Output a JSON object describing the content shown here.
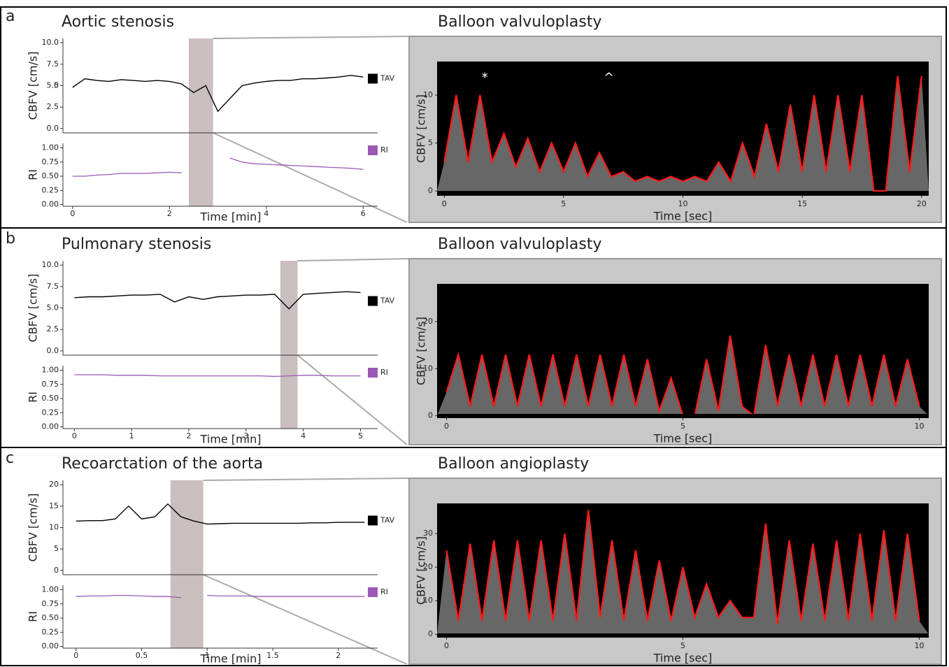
{
  "chart_data": [
    {
      "type": "line",
      "panel": "a",
      "title": "Aortic stenosis",
      "x": [
        0,
        0.25,
        0.5,
        0.75,
        1,
        1.25,
        1.5,
        1.75,
        2,
        2.25,
        2.5,
        2.75,
        3,
        3.25,
        3.5,
        3.75,
        4,
        4.25,
        4.5,
        4.75,
        5,
        5.25,
        5.5,
        5.75,
        6
      ],
      "xlim": [
        -0.2,
        6.3
      ],
      "xticks": [
        0,
        2,
        4,
        6
      ],
      "xlabel": "Time [min]",
      "ylabel": "CBFV [cm/s]",
      "ylim": [
        -0.5,
        10.5
      ],
      "yticks": [
        {
          "value": 0,
          "label": "0.0"
        },
        2.5,
        5,
        {
          "value": 5,
          "label": "5.0"
        },
        7.5,
        {
          "value": 10,
          "label": "10.0"
        }
      ],
      "y2label": "RI",
      "y2lim": [
        -0.03,
        1.08
      ],
      "y2ticks": [
        {
          "value": 0,
          "label": "0.00"
        },
        0.25,
        {
          "value": 0.5,
          "label": "0.50"
        },
        0.75,
        {
          "value": 1,
          "label": "1.00"
        }
      ],
      "highlight": [
        2.4,
        2.9
      ],
      "highlight_color": "#c9bfbe",
      "series": [
        {
          "name": "TAV",
          "color": "#000000",
          "values": [
            4.8,
            5.8,
            5.6,
            5.5,
            5.7,
            5.6,
            5.5,
            5.6,
            5.5,
            5.2,
            4.2,
            5.0,
            2.0,
            3.5,
            5.0,
            5.3,
            5.5,
            5.6,
            5.6,
            5.8,
            5.8,
            5.9,
            6.0,
            6.2,
            6.0
          ]
        },
        {
          "name": "RI",
          "color": "#9b59b6",
          "axis": "y2",
          "values": [
            0.5,
            0.5,
            0.52,
            0.53,
            0.55,
            0.55,
            0.55,
            0.56,
            0.57,
            0.56,
            null,
            null,
            null,
            0.82,
            0.75,
            0.72,
            0.71,
            0.7,
            0.69,
            0.68,
            0.67,
            0.66,
            0.65,
            0.64,
            0.62
          ]
        }
      ]
    },
    {
      "type": "line",
      "title": "Balloon valvuloplasty",
      "background": "#000000",
      "x": [
        0,
        0.5,
        1,
        1.5,
        2,
        2.5,
        3,
        3.5,
        4,
        4.5,
        5,
        5.5,
        6,
        6.5,
        7,
        7.5,
        8,
        8.5,
        9,
        9.5,
        10,
        10.5,
        11,
        11.5,
        12,
        12.5,
        13,
        13.5,
        14,
        14.5,
        15,
        15.5,
        16,
        16.5,
        17,
        17.5,
        18,
        18.5,
        19,
        19.5,
        20
      ],
      "xlim": [
        -0.3,
        20.3
      ],
      "xticks": [
        0,
        5,
        10,
        15,
        20
      ],
      "xlabel": "Time [sec]",
      "ylabel": "CBFV [cm/s]",
      "ylim": [
        -0.5,
        13.5
      ],
      "yticks": [
        0,
        5,
        10
      ],
      "annotations": [
        {
          "text": "*",
          "x": 1.7,
          "y": 11.8
        },
        {
          "text": "^",
          "x": 6.9,
          "y": 11.8
        }
      ],
      "series": [
        {
          "color": "#ff1a1a",
          "values": [
            3,
            10,
            3,
            10,
            3,
            6,
            2.5,
            5.5,
            2,
            5,
            2,
            5,
            1.5,
            4,
            1.5,
            2,
            1,
            1.5,
            1,
            1.5,
            1,
            1.5,
            1,
            3,
            1,
            5,
            1.5,
            7,
            2,
            9,
            2,
            10,
            2,
            10,
            2,
            10,
            0,
            0,
            12,
            2,
            12
          ]
        }
      ]
    },
    {
      "type": "line",
      "panel": "b",
      "title": "Pulmonary stenosis",
      "x": [
        0,
        0.25,
        0.5,
        0.75,
        1,
        1.25,
        1.5,
        1.75,
        2,
        2.25,
        2.5,
        2.75,
        3,
        3.25,
        3.5,
        3.75,
        4,
        4.25,
        4.5,
        4.75,
        5
      ],
      "xlim": [
        -0.2,
        5.3
      ],
      "xticks": [
        0,
        1,
        2,
        3,
        4,
        5
      ],
      "xlabel": "Time [min]",
      "ylabel": "CBFV [cm/s]",
      "ylim": [
        -0.5,
        10.5
      ],
      "yticks": [
        {
          "value": 0,
          "label": "0.0"
        },
        2.5,
        {
          "value": 5,
          "label": "5.0"
        },
        7.5,
        {
          "value": 10,
          "label": "10.0"
        }
      ],
      "y2label": "RI",
      "y2lim": [
        -0.03,
        1.08
      ],
      "y2ticks": [
        {
          "value": 0,
          "label": "0.00"
        },
        0.25,
        {
          "value": 0.5,
          "label": "0.50"
        },
        0.75,
        {
          "value": 1,
          "label": "1.00"
        }
      ],
      "highlight": [
        3.6,
        3.9
      ],
      "highlight_color": "#c9bfbe",
      "series": [
        {
          "name": "TAV",
          "color": "#000000",
          "values": [
            6.2,
            6.3,
            6.3,
            6.4,
            6.5,
            6.5,
            6.6,
            5.7,
            6.3,
            6.0,
            6.3,
            6.4,
            6.5,
            6.5,
            6.6,
            4.9,
            6.6,
            6.7,
            6.8,
            6.9,
            6.8
          ]
        },
        {
          "name": "RI",
          "color": "#9b59b6",
          "axis": "y2",
          "values": [
            0.92,
            0.92,
            0.92,
            0.91,
            0.91,
            0.91,
            0.9,
            0.9,
            0.9,
            0.9,
            0.9,
            0.9,
            0.9,
            0.9,
            0.89,
            0.9,
            0.91,
            0.91,
            0.9,
            0.9,
            0.9
          ]
        }
      ]
    },
    {
      "type": "line",
      "title": "Balloon valvuloplasty",
      "background": "#000000",
      "x": [
        0,
        0.25,
        0.5,
        0.75,
        1,
        1.25,
        1.5,
        1.75,
        2,
        2.25,
        2.5,
        2.75,
        3,
        3.25,
        3.5,
        3.75,
        4,
        4.25,
        4.5,
        4.75,
        5,
        5.25,
        5.5,
        5.75,
        6,
        6.25,
        6.5,
        6.75,
        7,
        7.25,
        7.5,
        7.75,
        8,
        8.25,
        8.5,
        8.75,
        9,
        9.25,
        9.5,
        9.75,
        10
      ],
      "xlim": [
        -0.2,
        10.2
      ],
      "xticks": [
        0,
        5,
        10
      ],
      "xlabel": "Time [sec]",
      "ylabel": "CBFV [cm/s]",
      "ylim": [
        -0.5,
        28
      ],
      "yticks": [
        0,
        10,
        20
      ],
      "series": [
        {
          "color": "#ff1a1a",
          "values": [
            5,
            13,
            2,
            13,
            2,
            13,
            2,
            13,
            2,
            13,
            2,
            13,
            2,
            13,
            2,
            13,
            2,
            12,
            1,
            8,
            0,
            0,
            12,
            1,
            17,
            2,
            0,
            15,
            2,
            13,
            2,
            13,
            2,
            13,
            2,
            13,
            2,
            13,
            2,
            12,
            2
          ]
        }
      ]
    },
    {
      "type": "line",
      "panel": "c",
      "title": "Recoarctation of the aorta",
      "x": [
        0,
        0.1,
        0.2,
        0.3,
        0.4,
        0.5,
        0.6,
        0.7,
        0.8,
        0.9,
        1,
        1.1,
        1.2,
        1.3,
        1.4,
        1.5,
        1.6,
        1.7,
        1.8,
        1.9,
        2,
        2.1,
        2.2
      ],
      "xlim": [
        -0.1,
        2.3
      ],
      "xticks": [
        0,
        0.5,
        1,
        1.5,
        2
      ],
      "xlabel": "Time [min]",
      "ylabel": "CBFV [cm/s]",
      "ylim": [
        -1,
        21
      ],
      "yticks": [
        0,
        5,
        10,
        15,
        20
      ],
      "y2label": "RI",
      "y2lim": [
        -0.03,
        1.08
      ],
      "y2ticks": [
        {
          "value": 0,
          "label": "0.00"
        },
        0.25,
        {
          "value": 0.5,
          "label": "0.50"
        },
        0.75,
        {
          "value": 1,
          "label": "1.00"
        }
      ],
      "highlight": [
        0.72,
        0.97
      ],
      "highlight_color": "#c9bfbe",
      "series": [
        {
          "name": "TAV",
          "color": "#000000",
          "values": [
            11.5,
            11.6,
            11.6,
            12,
            15,
            12,
            12.5,
            15.5,
            12.5,
            11.5,
            10.8,
            10.9,
            11,
            11,
            11,
            11,
            11,
            11,
            11.1,
            11.1,
            11.2,
            11.2,
            11.2
          ]
        },
        {
          "name": "RI",
          "color": "#9b59b6",
          "axis": "y2",
          "values": [
            0.88,
            0.89,
            0.89,
            0.9,
            0.9,
            0.89,
            0.88,
            0.88,
            0.86,
            null,
            0.9,
            0.89,
            0.89,
            0.89,
            0.88,
            0.88,
            0.88,
            0.88,
            0.88,
            0.88,
            0.88,
            0.88,
            0.88
          ]
        }
      ]
    },
    {
      "type": "line",
      "title": "Balloon angioplasty",
      "background": "#000000",
      "x": [
        0,
        0.25,
        0.5,
        0.75,
        1,
        1.25,
        1.5,
        1.75,
        2,
        2.25,
        2.5,
        2.75,
        3,
        3.25,
        3.5,
        3.75,
        4,
        4.25,
        4.5,
        4.75,
        5,
        5.25,
        5.5,
        5.75,
        6,
        6.25,
        6.5,
        6.75,
        7,
        7.25,
        7.5,
        7.75,
        8,
        8.25,
        8.5,
        8.75,
        9,
        9.25,
        9.5,
        9.75,
        10
      ],
      "xlim": [
        -0.2,
        10.2
      ],
      "xticks": [
        0,
        5,
        10
      ],
      "xlabel": "Time [sec]",
      "ylabel": "CBFV [cm/s]",
      "ylim": [
        -1,
        39
      ],
      "yticks": [
        0,
        10,
        20,
        30
      ],
      "series": [
        {
          "color": "#ff1a1a",
          "values": [
            25,
            4,
            27,
            4,
            28,
            4,
            28,
            4,
            28,
            4,
            30,
            4,
            37,
            5,
            28,
            4,
            25,
            4,
            22,
            4,
            20,
            5,
            15,
            5,
            10,
            5,
            5,
            33,
            3,
            28,
            4,
            27,
            4,
            28,
            4,
            30,
            4,
            31,
            4,
            30,
            4
          ]
        }
      ]
    }
  ]
}
